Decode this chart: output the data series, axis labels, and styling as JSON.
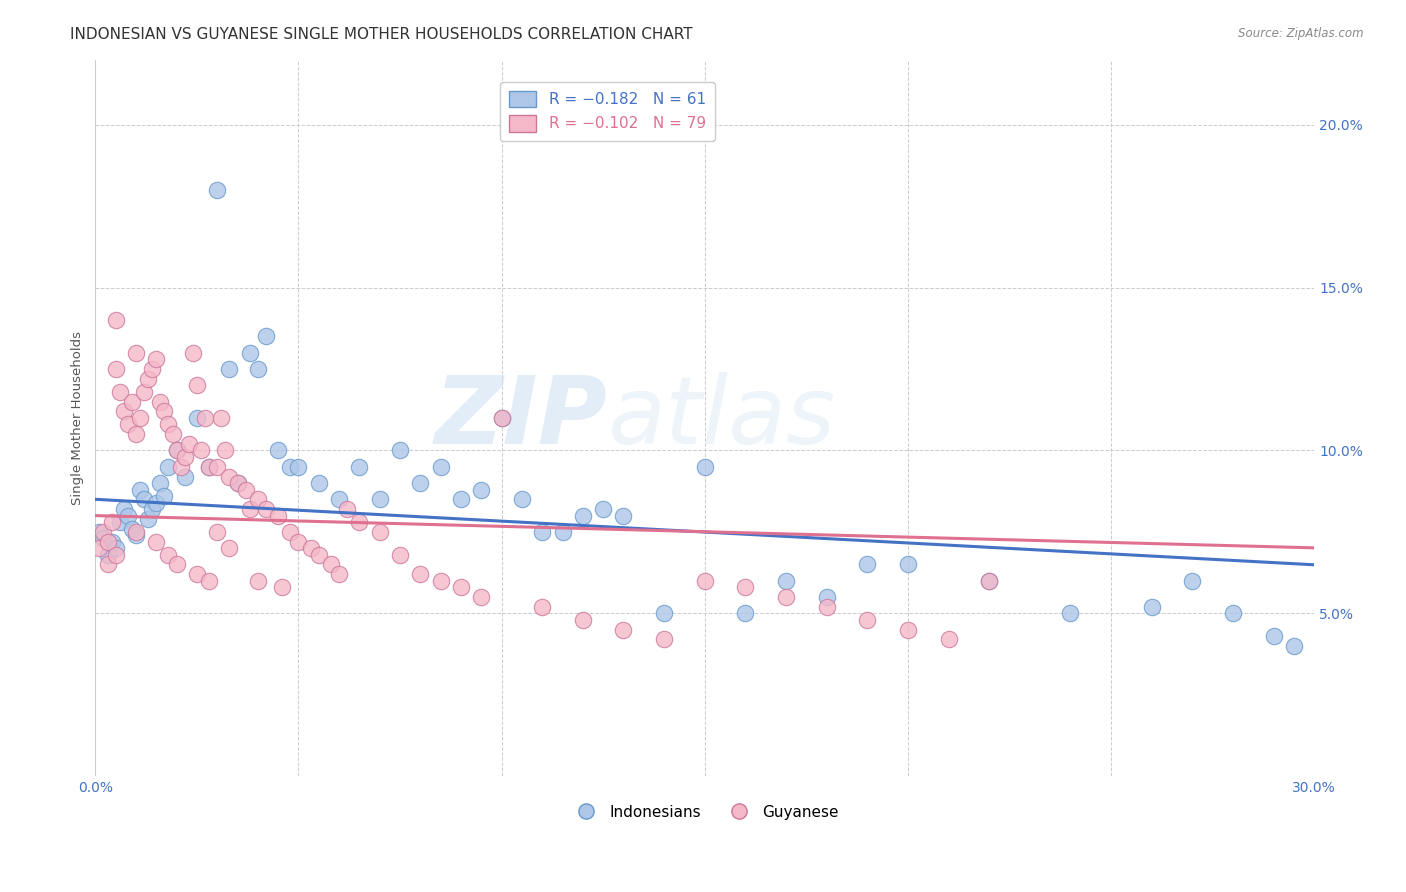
{
  "title": "INDONESIAN VS GUYANESE SINGLE MOTHER HOUSEHOLDS CORRELATION CHART",
  "source": "Source: ZipAtlas.com",
  "ylabel": "Single Mother Households",
  "xlim": [
    0.0,
    0.3
  ],
  "ylim": [
    0.0,
    0.22
  ],
  "xticks": [
    0.0,
    0.05,
    0.1,
    0.15,
    0.2,
    0.25,
    0.3
  ],
  "yticks": [
    0.05,
    0.1,
    0.15,
    0.2
  ],
  "blue_R": -0.182,
  "blue_N": 61,
  "pink_R": -0.102,
  "pink_N": 79,
  "watermark_text": "ZIPatlas",
  "blue_color": "#aec6e8",
  "blue_edge": "#6699cc",
  "pink_color": "#f4b8c8",
  "pink_edge": "#cc7799",
  "blue_line": "#4472c4",
  "pink_line": "#e07090",
  "grid_color": "#cccccc",
  "tick_color": "#4472c4",
  "title_color": "#333333",
  "source_color": "#888888",
  "ylabel_color": "#555555",
  "blue_x": [
    0.001,
    0.002,
    0.003,
    0.004,
    0.005,
    0.006,
    0.007,
    0.008,
    0.009,
    0.01,
    0.011,
    0.012,
    0.013,
    0.014,
    0.015,
    0.016,
    0.017,
    0.018,
    0.02,
    0.022,
    0.025,
    0.028,
    0.03,
    0.033,
    0.035,
    0.038,
    0.04,
    0.042,
    0.045,
    0.048,
    0.05,
    0.055,
    0.06,
    0.065,
    0.07,
    0.075,
    0.08,
    0.085,
    0.09,
    0.095,
    0.1,
    0.105,
    0.11,
    0.115,
    0.12,
    0.125,
    0.13,
    0.14,
    0.15,
    0.16,
    0.17,
    0.18,
    0.19,
    0.2,
    0.22,
    0.24,
    0.26,
    0.27,
    0.28,
    0.29,
    0.295
  ],
  "blue_y": [
    0.075,
    0.073,
    0.068,
    0.072,
    0.07,
    0.078,
    0.082,
    0.08,
    0.076,
    0.074,
    0.088,
    0.085,
    0.079,
    0.082,
    0.084,
    0.09,
    0.086,
    0.095,
    0.1,
    0.092,
    0.11,
    0.095,
    0.18,
    0.125,
    0.09,
    0.13,
    0.125,
    0.135,
    0.1,
    0.095,
    0.095,
    0.09,
    0.085,
    0.095,
    0.085,
    0.1,
    0.09,
    0.095,
    0.085,
    0.088,
    0.11,
    0.085,
    0.075,
    0.075,
    0.08,
    0.082,
    0.08,
    0.05,
    0.095,
    0.05,
    0.06,
    0.055,
    0.065,
    0.065,
    0.06,
    0.05,
    0.052,
    0.06,
    0.05,
    0.043,
    0.04
  ],
  "pink_x": [
    0.001,
    0.002,
    0.003,
    0.004,
    0.005,
    0.005,
    0.006,
    0.007,
    0.008,
    0.009,
    0.01,
    0.01,
    0.011,
    0.012,
    0.013,
    0.014,
    0.015,
    0.016,
    0.017,
    0.018,
    0.019,
    0.02,
    0.021,
    0.022,
    0.023,
    0.024,
    0.025,
    0.026,
    0.027,
    0.028,
    0.03,
    0.031,
    0.032,
    0.033,
    0.035,
    0.037,
    0.038,
    0.04,
    0.042,
    0.045,
    0.048,
    0.05,
    0.053,
    0.055,
    0.058,
    0.06,
    0.062,
    0.065,
    0.07,
    0.075,
    0.08,
    0.085,
    0.09,
    0.095,
    0.1,
    0.11,
    0.12,
    0.13,
    0.14,
    0.15,
    0.16,
    0.17,
    0.18,
    0.19,
    0.2,
    0.21,
    0.22,
    0.003,
    0.005,
    0.01,
    0.015,
    0.018,
    0.02,
    0.025,
    0.028,
    0.03,
    0.033,
    0.04,
    0.046
  ],
  "pink_y": [
    0.07,
    0.075,
    0.072,
    0.078,
    0.14,
    0.125,
    0.118,
    0.112,
    0.108,
    0.115,
    0.105,
    0.13,
    0.11,
    0.118,
    0.122,
    0.125,
    0.128,
    0.115,
    0.112,
    0.108,
    0.105,
    0.1,
    0.095,
    0.098,
    0.102,
    0.13,
    0.12,
    0.1,
    0.11,
    0.095,
    0.095,
    0.11,
    0.1,
    0.092,
    0.09,
    0.088,
    0.082,
    0.085,
    0.082,
    0.08,
    0.075,
    0.072,
    0.07,
    0.068,
    0.065,
    0.062,
    0.082,
    0.078,
    0.075,
    0.068,
    0.062,
    0.06,
    0.058,
    0.055,
    0.11,
    0.052,
    0.048,
    0.045,
    0.042,
    0.06,
    0.058,
    0.055,
    0.052,
    0.048,
    0.045,
    0.042,
    0.06,
    0.065,
    0.068,
    0.075,
    0.072,
    0.068,
    0.065,
    0.062,
    0.06,
    0.075,
    0.07,
    0.06,
    0.058
  ]
}
